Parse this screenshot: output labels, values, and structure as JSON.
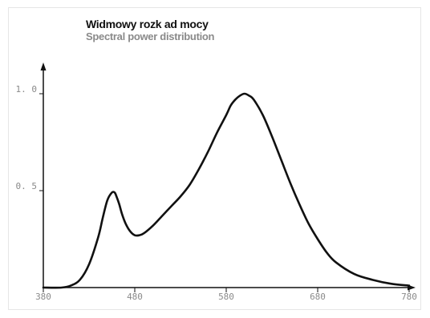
{
  "chart_data": {
    "type": "line",
    "title": "Widmowy rozk ad mocy",
    "subtitle": "Spectral power distribution",
    "xlabel": "",
    "ylabel": "",
    "xlim": [
      380,
      780
    ],
    "ylim": [
      0,
      1.0
    ],
    "x_ticks": [
      {
        "value": 380,
        "label": "380"
      },
      {
        "value": 480,
        "label": "480"
      },
      {
        "value": 580,
        "label": "580"
      },
      {
        "value": 680,
        "label": "680"
      },
      {
        "value": 780,
        "label": "780"
      }
    ],
    "y_ticks": [
      {
        "value": 0.5,
        "label": "0. 5"
      },
      {
        "value": 1.0,
        "label": "1. 0"
      }
    ],
    "grid": false,
    "series": [
      {
        "color": "#111111",
        "x": [
          380,
          400,
          410,
          420,
          430,
          440,
          445,
          450,
          455,
          458,
          460,
          463,
          466,
          470,
          475,
          480,
          485,
          490,
          500,
          510,
          520,
          530,
          540,
          550,
          560,
          570,
          580,
          585,
          590,
          595,
          600,
          605,
          610,
          620,
          630,
          640,
          650,
          660,
          670,
          680,
          690,
          700,
          720,
          740,
          760,
          780
        ],
        "y": [
          0.0,
          0.0,
          0.01,
          0.04,
          0.12,
          0.26,
          0.36,
          0.45,
          0.49,
          0.49,
          0.47,
          0.43,
          0.38,
          0.33,
          0.29,
          0.27,
          0.27,
          0.28,
          0.32,
          0.37,
          0.42,
          0.47,
          0.53,
          0.61,
          0.7,
          0.8,
          0.89,
          0.94,
          0.97,
          0.99,
          1.0,
          0.99,
          0.97,
          0.89,
          0.78,
          0.66,
          0.54,
          0.43,
          0.33,
          0.25,
          0.18,
          0.13,
          0.07,
          0.04,
          0.02,
          0.01
        ]
      }
    ]
  }
}
